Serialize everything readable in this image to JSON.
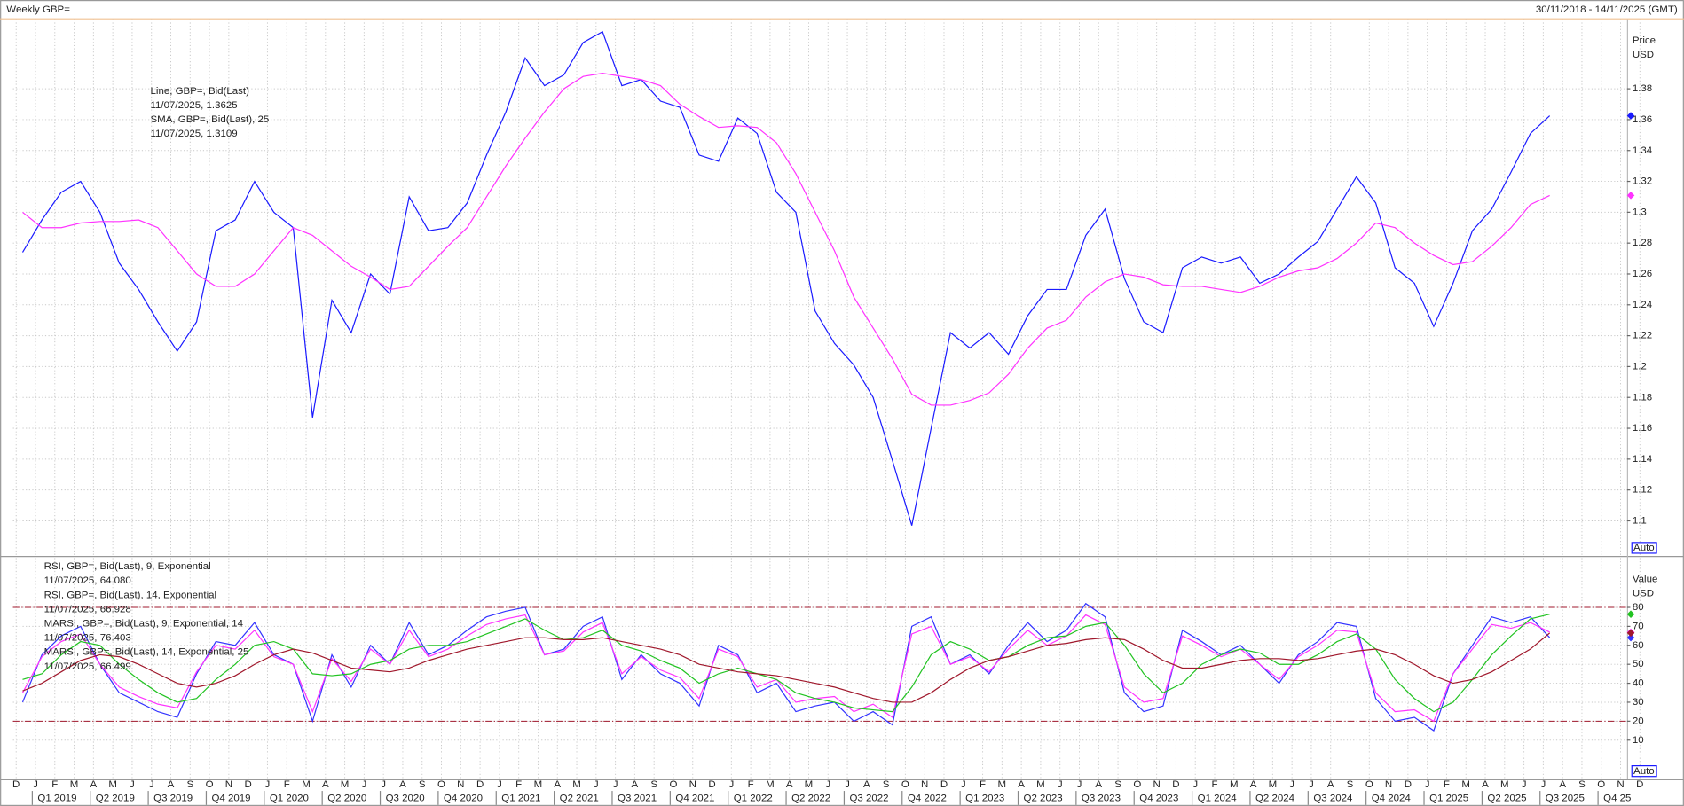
{
  "header": {
    "title": "Weekly GBP=",
    "range": "30/11/2018 - 14/11/2025 (GMT)"
  },
  "chart_data": [
    {
      "type": "line",
      "axis_label": [
        "Price",
        "USD"
      ],
      "scale_button": "Auto",
      "x": [
        "Dec 2018",
        "Jan 2019",
        "Feb 2019",
        "Mar 2019",
        "Apr 2019",
        "May 2019",
        "Jun 2019",
        "Jul 2019",
        "Aug 2019",
        "Sep 2019",
        "Oct 2019",
        "Nov 2019",
        "Dec 2019",
        "Jan 2020",
        "Feb 2020",
        "Mar 2020",
        "Apr 2020",
        "May 2020",
        "Jun 2020",
        "Jul 2020",
        "Aug 2020",
        "Sep 2020",
        "Oct 2020",
        "Nov 2020",
        "Dec 2020",
        "Jan 2021",
        "Feb 2021",
        "Mar 2021",
        "Apr 2021",
        "May 2021",
        "Jun 2021",
        "Jul 2021",
        "Aug 2021",
        "Sep 2021",
        "Oct 2021",
        "Nov 2021",
        "Dec 2021",
        "Jan 2022",
        "Feb 2022",
        "Mar 2022",
        "Apr 2022",
        "May 2022",
        "Jun 2022",
        "Jul 2022",
        "Aug 2022",
        "Sep 2022",
        "Oct 2022",
        "Nov 2022",
        "Dec 2022",
        "Jan 2023",
        "Feb 2023",
        "Mar 2023",
        "Apr 2023",
        "May 2023",
        "Jun 2023",
        "Jul 2023",
        "Aug 2023",
        "Sep 2023",
        "Oct 2023",
        "Nov 2023",
        "Dec 2023",
        "Jan 2024",
        "Feb 2024",
        "Mar 2024",
        "Apr 2024",
        "May 2024",
        "Jun 2024",
        "Jul 2024",
        "Aug 2024",
        "Sep 2024",
        "Oct 2024",
        "Nov 2024",
        "Dec 2024",
        "Jan 2025",
        "Feb 2025",
        "Mar 2025",
        "Apr 2025",
        "May 2025",
        "Jun 2025",
        "Jul 2025"
      ],
      "series": [
        {
          "name": "Line, GBP=, Bid(Last)",
          "legend_value": "11/07/2025, 1.3625",
          "color": "#1a1aff",
          "values": [
            1.274,
            1.295,
            1.313,
            1.32,
            1.3,
            1.267,
            1.25,
            1.229,
            1.21,
            1.229,
            1.288,
            1.295,
            1.32,
            1.3,
            1.29,
            1.167,
            1.243,
            1.222,
            1.26,
            1.247,
            1.31,
            1.288,
            1.29,
            1.306,
            1.337,
            1.365,
            1.4,
            1.382,
            1.389,
            1.41,
            1.417,
            1.382,
            1.386,
            1.372,
            1.368,
            1.337,
            1.333,
            1.361,
            1.351,
            1.313,
            1.3,
            1.236,
            1.215,
            1.201,
            1.18,
            1.139,
            1.097,
            1.16,
            1.222,
            1.212,
            1.222,
            1.208,
            1.233,
            1.25,
            1.25,
            1.285,
            1.302,
            1.257,
            1.229,
            1.222,
            1.264,
            1.271,
            1.267,
            1.271,
            1.254,
            1.26,
            1.271,
            1.281,
            1.302,
            1.323,
            1.306,
            1.264,
            1.254,
            1.226,
            1.254,
            1.288,
            1.302,
            1.326,
            1.351,
            1.3625
          ]
        },
        {
          "name": "SMA, GBP=, Bid(Last),  25",
          "legend_value": "11/07/2025, 1.3109",
          "color": "#ff33ff",
          "values": [
            1.3,
            1.29,
            1.29,
            1.293,
            1.294,
            1.294,
            1.295,
            1.29,
            1.275,
            1.26,
            1.252,
            1.252,
            1.26,
            1.275,
            1.29,
            1.285,
            1.275,
            1.265,
            1.258,
            1.25,
            1.252,
            1.265,
            1.278,
            1.29,
            1.31,
            1.33,
            1.348,
            1.365,
            1.38,
            1.388,
            1.39,
            1.388,
            1.386,
            1.382,
            1.37,
            1.362,
            1.355,
            1.356,
            1.355,
            1.345,
            1.325,
            1.3,
            1.275,
            1.245,
            1.225,
            1.205,
            1.182,
            1.175,
            1.175,
            1.178,
            1.183,
            1.195,
            1.212,
            1.225,
            1.23,
            1.245,
            1.255,
            1.26,
            1.258,
            1.253,
            1.252,
            1.252,
            1.25,
            1.248,
            1.252,
            1.258,
            1.262,
            1.264,
            1.27,
            1.28,
            1.293,
            1.29,
            1.28,
            1.272,
            1.266,
            1.268,
            1.278,
            1.29,
            1.305,
            1.3109
          ]
        }
      ],
      "ylim": [
        1.078,
        1.425
      ],
      "yticks": [
        1.1,
        1.12,
        1.14,
        1.16,
        1.18,
        1.2,
        1.22,
        1.24,
        1.26,
        1.28,
        1.3,
        1.32,
        1.34,
        1.36,
        1.38
      ],
      "grid": true
    },
    {
      "type": "line",
      "axis_label": [
        "Value",
        "USD"
      ],
      "scale_button": "Auto",
      "x": [
        "Dec 2018",
        "Jan 2019",
        "Feb 2019",
        "Mar 2019",
        "Apr 2019",
        "May 2019",
        "Jun 2019",
        "Jul 2019",
        "Aug 2019",
        "Sep 2019",
        "Oct 2019",
        "Nov 2019",
        "Dec 2019",
        "Jan 2020",
        "Feb 2020",
        "Mar 2020",
        "Apr 2020",
        "May 2020",
        "Jun 2020",
        "Jul 2020",
        "Aug 2020",
        "Sep 2020",
        "Oct 2020",
        "Nov 2020",
        "Dec 2020",
        "Jan 2021",
        "Feb 2021",
        "Mar 2021",
        "Apr 2021",
        "May 2021",
        "Jun 2021",
        "Jul 2021",
        "Aug 2021",
        "Sep 2021",
        "Oct 2021",
        "Nov 2021",
        "Dec 2021",
        "Jan 2022",
        "Feb 2022",
        "Mar 2022",
        "Apr 2022",
        "May 2022",
        "Jun 2022",
        "Jul 2022",
        "Aug 2022",
        "Sep 2022",
        "Oct 2022",
        "Nov 2022",
        "Dec 2022",
        "Jan 2023",
        "Feb 2023",
        "Mar 2023",
        "Apr 2023",
        "May 2023",
        "Jun 2023",
        "Jul 2023",
        "Aug 2023",
        "Sep 2023",
        "Oct 2023",
        "Nov 2023",
        "Dec 2023",
        "Jan 2024",
        "Feb 2024",
        "Mar 2024",
        "Apr 2024",
        "May 2024",
        "Jun 2024",
        "Jul 2024",
        "Aug 2024",
        "Sep 2024",
        "Oct 2024",
        "Nov 2024",
        "Dec 2024",
        "Jan 2025",
        "Feb 2025",
        "Mar 2025",
        "Apr 2025",
        "May 2025",
        "Jun 2025",
        "Jul 2025"
      ],
      "series": [
        {
          "name": "RSI, GBP=, Bid(Last),  9, Exponential",
          "legend_value": "11/07/2025, 64.080",
          "color": "#3333ff",
          "values": [
            30,
            55,
            65,
            70,
            50,
            35,
            30,
            25,
            22,
            45,
            62,
            60,
            72,
            55,
            50,
            20,
            55,
            38,
            60,
            50,
            72,
            55,
            60,
            68,
            75,
            78,
            80,
            55,
            58,
            70,
            75,
            42,
            55,
            45,
            40,
            28,
            60,
            55,
            35,
            40,
            25,
            28,
            30,
            20,
            25,
            18,
            70,
            75,
            50,
            55,
            45,
            60,
            72,
            62,
            68,
            82,
            75,
            35,
            25,
            28,
            68,
            62,
            55,
            60,
            50,
            40,
            55,
            62,
            72,
            70,
            32,
            20,
            22,
            15,
            45,
            60,
            75,
            72,
            75,
            64.08
          ]
        },
        {
          "name": "RSI, GBP=, Bid(Last),  14, Exponential",
          "legend_value": "11/07/2025, 66.928",
          "color": "#ff33ff",
          "values": [
            35,
            54,
            62,
            66,
            50,
            38,
            33,
            29,
            27,
            46,
            60,
            58,
            68,
            54,
            50,
            25,
            53,
            41,
            58,
            50,
            68,
            54,
            58,
            65,
            71,
            74,
            76,
            55,
            57,
            67,
            72,
            45,
            54,
            47,
            43,
            32,
            58,
            54,
            38,
            42,
            30,
            32,
            33,
            25,
            29,
            22,
            66,
            70,
            50,
            54,
            46,
            58,
            68,
            60,
            65,
            76,
            71,
            38,
            30,
            32,
            65,
            60,
            54,
            58,
            50,
            42,
            54,
            60,
            68,
            67,
            35,
            25,
            26,
            20,
            45,
            58,
            71,
            69,
            72,
            66.928
          ]
        },
        {
          "name": "MARSI, GBP=, Bid(Last),  9, Exponential, 14",
          "legend_value": "11/07/2025, 76.403",
          "color": "#22c322",
          "values": [
            42,
            45,
            55,
            62,
            60,
            50,
            42,
            35,
            30,
            32,
            42,
            50,
            60,
            62,
            58,
            45,
            44,
            45,
            50,
            52,
            58,
            60,
            60,
            62,
            66,
            70,
            74,
            68,
            63,
            64,
            68,
            60,
            57,
            52,
            48,
            40,
            45,
            48,
            45,
            42,
            35,
            32,
            30,
            27,
            26,
            25,
            38,
            55,
            62,
            58,
            52,
            54,
            60,
            64,
            65,
            70,
            72,
            60,
            45,
            35,
            40,
            50,
            55,
            58,
            56,
            50,
            50,
            55,
            62,
            66,
            58,
            42,
            32,
            25,
            30,
            42,
            55,
            65,
            74,
            76.403
          ]
        },
        {
          "name": "MARSI, GBP=, Bid(Last),  14, Exponential, 25",
          "legend_value": "11/07/2025, 66.499",
          "color": "#a0182c",
          "values": [
            36,
            40,
            46,
            52,
            55,
            54,
            50,
            45,
            40,
            38,
            40,
            44,
            50,
            55,
            58,
            56,
            52,
            48,
            47,
            46,
            48,
            52,
            55,
            58,
            60,
            62,
            64,
            64,
            63,
            63,
            64,
            62,
            60,
            58,
            55,
            50,
            48,
            46,
            45,
            44,
            42,
            40,
            38,
            35,
            32,
            30,
            30,
            35,
            42,
            48,
            52,
            54,
            57,
            60,
            61,
            63,
            64,
            63,
            58,
            52,
            48,
            48,
            50,
            52,
            53,
            53,
            52,
            53,
            55,
            57,
            58,
            55,
            50,
            44,
            40,
            42,
            46,
            52,
            58,
            66.499
          ]
        }
      ],
      "ylim": [
        -10,
        106
      ],
      "yticks": [
        10,
        20,
        30,
        40,
        50,
        60,
        70,
        80
      ],
      "reference_lines": [
        80,
        20
      ],
      "grid": true,
      "month_labels": [
        "D",
        "J",
        "F",
        "M",
        "A",
        "M",
        "J",
        "J",
        "A",
        "S",
        "O",
        "N",
        "D",
        "J",
        "F",
        "M",
        "A",
        "M",
        "J",
        "J",
        "A",
        "S",
        "O",
        "N",
        "D",
        "J",
        "F",
        "M",
        "A",
        "M",
        "J",
        "J",
        "A",
        "S",
        "O",
        "N",
        "D",
        "J",
        "F",
        "M",
        "A",
        "M",
        "J",
        "J",
        "A",
        "S",
        "O",
        "N",
        "D",
        "J",
        "F",
        "M",
        "A",
        "M",
        "J",
        "J",
        "A",
        "S",
        "O",
        "N",
        "D",
        "J",
        "F",
        "M",
        "A",
        "M",
        "J",
        "J",
        "A",
        "S",
        "O",
        "N",
        "D",
        "J",
        "F",
        "M",
        "A",
        "M",
        "J",
        "J",
        "A",
        "S",
        "O",
        "N",
        "D"
      ],
      "quarter_labels": [
        "Q1 2019",
        "Q2 2019",
        "Q3 2019",
        "Q4 2019",
        "Q1 2020",
        "Q2 2020",
        "Q3 2020",
        "Q4 2020",
        "Q1 2021",
        "Q2 2021",
        "Q3 2021",
        "Q4 2021",
        "Q1 2022",
        "Q2 2022",
        "Q3 2022",
        "Q4 2022",
        "Q1 2023",
        "Q2 2023",
        "Q3 2023",
        "Q4 2023",
        "Q1 2024",
        "Q2 2024",
        "Q3 2024",
        "Q4 2024",
        "Q1 2025",
        "Q2 2025",
        "Q3 2025",
        "Q4 25"
      ]
    }
  ]
}
